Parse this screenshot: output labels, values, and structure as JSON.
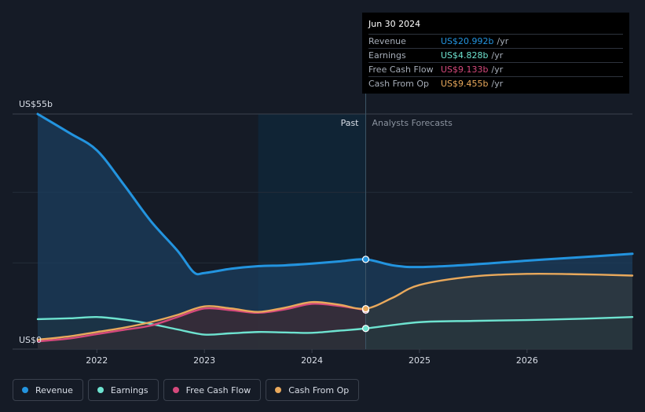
{
  "colors": {
    "revenue": "#2394df",
    "earnings": "#6ee3d0",
    "free_cash_flow": "#d5497c",
    "cash_from_op": "#e9a95c"
  },
  "tooltip": {
    "date": "Jun 30 2024",
    "rows": [
      {
        "label": "Revenue",
        "value": "US$20.992b",
        "unit": "/yr",
        "color": "#2394df"
      },
      {
        "label": "Earnings",
        "value": "US$4.828b",
        "unit": "/yr",
        "color": "#6ee3d0"
      },
      {
        "label": "Free Cash Flow",
        "value": "US$9.133b",
        "unit": "/yr",
        "color": "#d5497c"
      },
      {
        "label": "Cash From Op",
        "value": "US$9.455b",
        "unit": "/yr",
        "color": "#e9a95c"
      }
    ]
  },
  "legend": [
    {
      "label": "Revenue",
      "color": "#2394df"
    },
    {
      "label": "Earnings",
      "color": "#6ee3d0"
    },
    {
      "label": "Free Cash Flow",
      "color": "#d5497c"
    },
    {
      "label": "Cash From Op",
      "color": "#e9a95c"
    }
  ],
  "chart_data": {
    "type": "line",
    "y_top_label": "US$55b",
    "y_bottom_label": "US$0",
    "ylim": [
      0,
      55
    ],
    "xlim": [
      2021.45,
      2026.98
    ],
    "x_ticks": [
      2022,
      2023,
      2024,
      2025,
      2026
    ],
    "x_tick_labels": [
      "2022",
      "2023",
      "2024",
      "2025",
      "2026"
    ],
    "past_label": "Past",
    "forecast_label": "Analysts Forecasts",
    "divider_x": 2024.5,
    "highlight_start_x": 2023.5,
    "series": [
      {
        "name": "Revenue",
        "key": "revenue",
        "area": true,
        "x": [
          2021.45,
          2021.75,
          2022.0,
          2022.25,
          2022.5,
          2022.75,
          2022.9,
          2023.0,
          2023.25,
          2023.5,
          2023.75,
          2024.0,
          2024.25,
          2024.5,
          2024.75,
          2025.0,
          2025.5,
          2026.0,
          2026.5,
          2026.98
        ],
        "values": [
          55.0,
          50.5,
          46.5,
          38.5,
          30.0,
          23.0,
          18.0,
          17.8,
          18.8,
          19.4,
          19.6,
          20.0,
          20.5,
          20.992,
          19.6,
          19.2,
          19.8,
          20.7,
          21.5,
          22.3
        ]
      },
      {
        "name": "Earnings",
        "key": "earnings",
        "area": false,
        "x": [
          2021.45,
          2021.75,
          2022.0,
          2022.25,
          2022.5,
          2022.75,
          2023.0,
          2023.25,
          2023.5,
          2023.75,
          2024.0,
          2024.25,
          2024.5,
          2025.0,
          2025.5,
          2026.0,
          2026.5,
          2026.98
        ],
        "values": [
          7.0,
          7.2,
          7.5,
          6.9,
          5.9,
          4.6,
          3.4,
          3.7,
          4.0,
          3.9,
          3.8,
          4.3,
          4.828,
          6.3,
          6.6,
          6.8,
          7.1,
          7.5
        ]
      },
      {
        "name": "Free Cash Flow",
        "key": "free_cash_flow",
        "area": false,
        "x": [
          2021.45,
          2021.75,
          2022.0,
          2022.25,
          2022.5,
          2022.75,
          2023.0,
          2023.25,
          2023.5,
          2023.75,
          2024.0,
          2024.25,
          2024.5
        ],
        "values": [
          1.8,
          2.5,
          3.5,
          4.5,
          5.5,
          7.5,
          9.5,
          9.1,
          8.5,
          9.3,
          10.6,
          10.1,
          9.133
        ]
      },
      {
        "name": "Cash From Op",
        "key": "cash_from_op",
        "area": false,
        "x": [
          2021.45,
          2021.75,
          2022.0,
          2022.25,
          2022.5,
          2022.75,
          2023.0,
          2023.25,
          2023.5,
          2023.75,
          2024.0,
          2024.25,
          2024.5,
          2024.75,
          2025.0,
          2025.5,
          2026.0,
          2026.5,
          2026.98
        ],
        "values": [
          2.2,
          3.0,
          4.0,
          5.0,
          6.3,
          8.0,
          10.0,
          9.5,
          8.7,
          9.7,
          11.0,
          10.4,
          9.455,
          12.0,
          15.0,
          17.0,
          17.6,
          17.5,
          17.2
        ]
      }
    ]
  }
}
